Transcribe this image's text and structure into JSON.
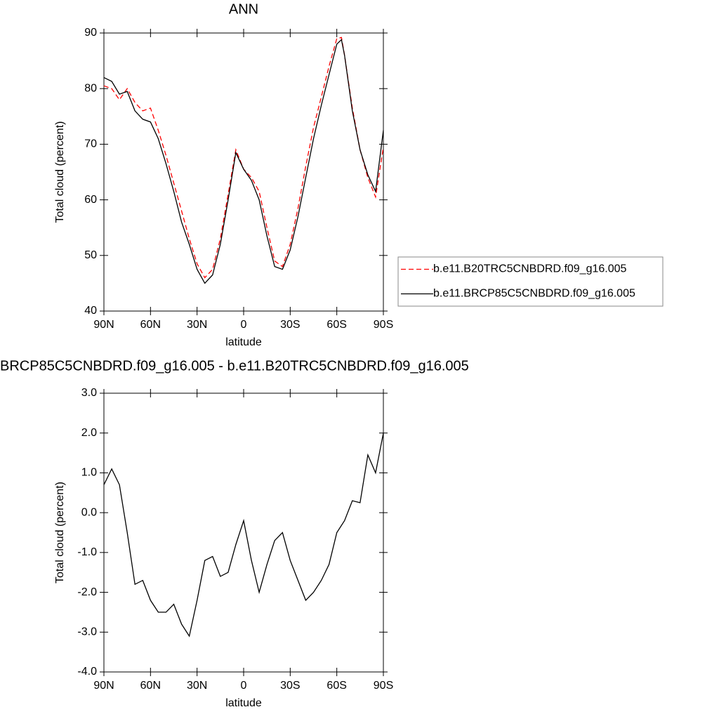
{
  "chart_data": [
    {
      "type": "line",
      "title": "ANN",
      "x_label": "latitude",
      "y_label": "Total cloud (percent)",
      "x": [
        90,
        85,
        80,
        75,
        70,
        65,
        60,
        55,
        50,
        45,
        40,
        35,
        30,
        25,
        20,
        15,
        10,
        5,
        0,
        -5,
        -10,
        -15,
        -20,
        -25,
        -30,
        -35,
        -40,
        -45,
        -50,
        -55,
        -60,
        -63,
        -65,
        -70,
        -75,
        -80,
        -85,
        -90
      ],
      "series": [
        {
          "name": "b.e11.B20TRC5CNBDRD.f09_g16.005",
          "color": "#ff0000",
          "style": "dashed",
          "values": [
            80.5,
            80,
            78,
            80,
            77.5,
            76,
            76.5,
            72.5,
            68,
            63,
            58,
            53,
            48.5,
            46,
            47.5,
            53,
            61,
            69,
            65.5,
            64,
            61.5,
            55,
            49,
            48,
            52,
            58.5,
            66,
            73,
            78.5,
            84,
            89,
            89.2,
            86,
            76.5,
            69,
            64,
            60.5,
            69.5
          ]
        },
        {
          "name": "b.e11.BRCP85C5CNBDRD.f09_g16.005",
          "color": "#000000",
          "style": "solid",
          "values": [
            82,
            81.3,
            79,
            79.5,
            76,
            74.5,
            74,
            71,
            66.5,
            61.5,
            56,
            52,
            47.5,
            45,
            46.5,
            52,
            60,
            68.5,
            65.5,
            63.5,
            60,
            53.5,
            48,
            47.5,
            51,
            57,
            64,
            71,
            77,
            82.5,
            88,
            88.8,
            86,
            76,
            69,
            64.5,
            61.5,
            72.5
          ]
        }
      ],
      "xlim": [
        90,
        -90
      ],
      "xticks": [
        {
          "value": 90,
          "label": "90N"
        },
        {
          "value": 60,
          "label": "60N"
        },
        {
          "value": 30,
          "label": "30N"
        },
        0,
        {
          "value": -30,
          "label": "30S"
        },
        {
          "value": -60,
          "label": "60S"
        },
        {
          "value": -90,
          "label": "90S"
        }
      ],
      "ylim": [
        40,
        90
      ],
      "yticks": [
        40,
        50,
        60,
        70,
        80,
        90
      ],
      "legend": "right"
    },
    {
      "type": "line",
      "title": "BRCP85C5CNBDRD.f09_g16.005 - b.e11.B20TRC5CNBDRD.f09_g16.005",
      "x_label": "latitude",
      "y_label": "Total cloud (percent)",
      "x": [
        90,
        85,
        80,
        75,
        70,
        65,
        60,
        55,
        50,
        45,
        40,
        35,
        30,
        25,
        20,
        15,
        10,
        5,
        0,
        -5,
        -10,
        -15,
        -20,
        -25,
        -30,
        -35,
        -40,
        -45,
        -50,
        -55,
        -60,
        -65,
        -70,
        -75,
        -80,
        -85,
        -90
      ],
      "series": [
        {
          "color": "#000000",
          "style": "solid",
          "values": [
            0.7,
            1.1,
            0.7,
            -0.5,
            -1.8,
            -1.7,
            -2.2,
            -2.5,
            -2.5,
            -2.3,
            -2.8,
            -3.1,
            -2.2,
            -1.2,
            -1.1,
            -1.6,
            -1.5,
            -0.8,
            -0.2,
            -1.2,
            -2.0,
            -1.3,
            -0.7,
            -0.5,
            -1.2,
            -1.7,
            -2.2,
            -2.0,
            -1.7,
            -1.3,
            -0.5,
            -0.2,
            0.3,
            0.25,
            1.45,
            1.0,
            2.0
          ]
        }
      ],
      "xlim": [
        90,
        -90
      ],
      "xticks": [
        {
          "value": 90,
          "label": "90N"
        },
        {
          "value": 60,
          "label": "60N"
        },
        {
          "value": 30,
          "label": "30N"
        },
        0,
        {
          "value": -30,
          "label": "30S"
        },
        {
          "value": -60,
          "label": "60S"
        },
        {
          "value": -90,
          "label": "90S"
        }
      ],
      "ylim": [
        -4,
        3
      ],
      "yticks": [
        {
          "value": -4,
          "label": "-4.0"
        },
        {
          "value": -3,
          "label": "-3.0"
        },
        {
          "value": -2,
          "label": "-2.0"
        },
        {
          "value": -1,
          "label": "-1.0"
        },
        {
          "value": 0,
          "label": "0.0"
        },
        {
          "value": 1,
          "label": "1.0"
        },
        {
          "value": 2,
          "label": "2.0"
        },
        {
          "value": 3,
          "label": "3.0"
        }
      ]
    }
  ]
}
